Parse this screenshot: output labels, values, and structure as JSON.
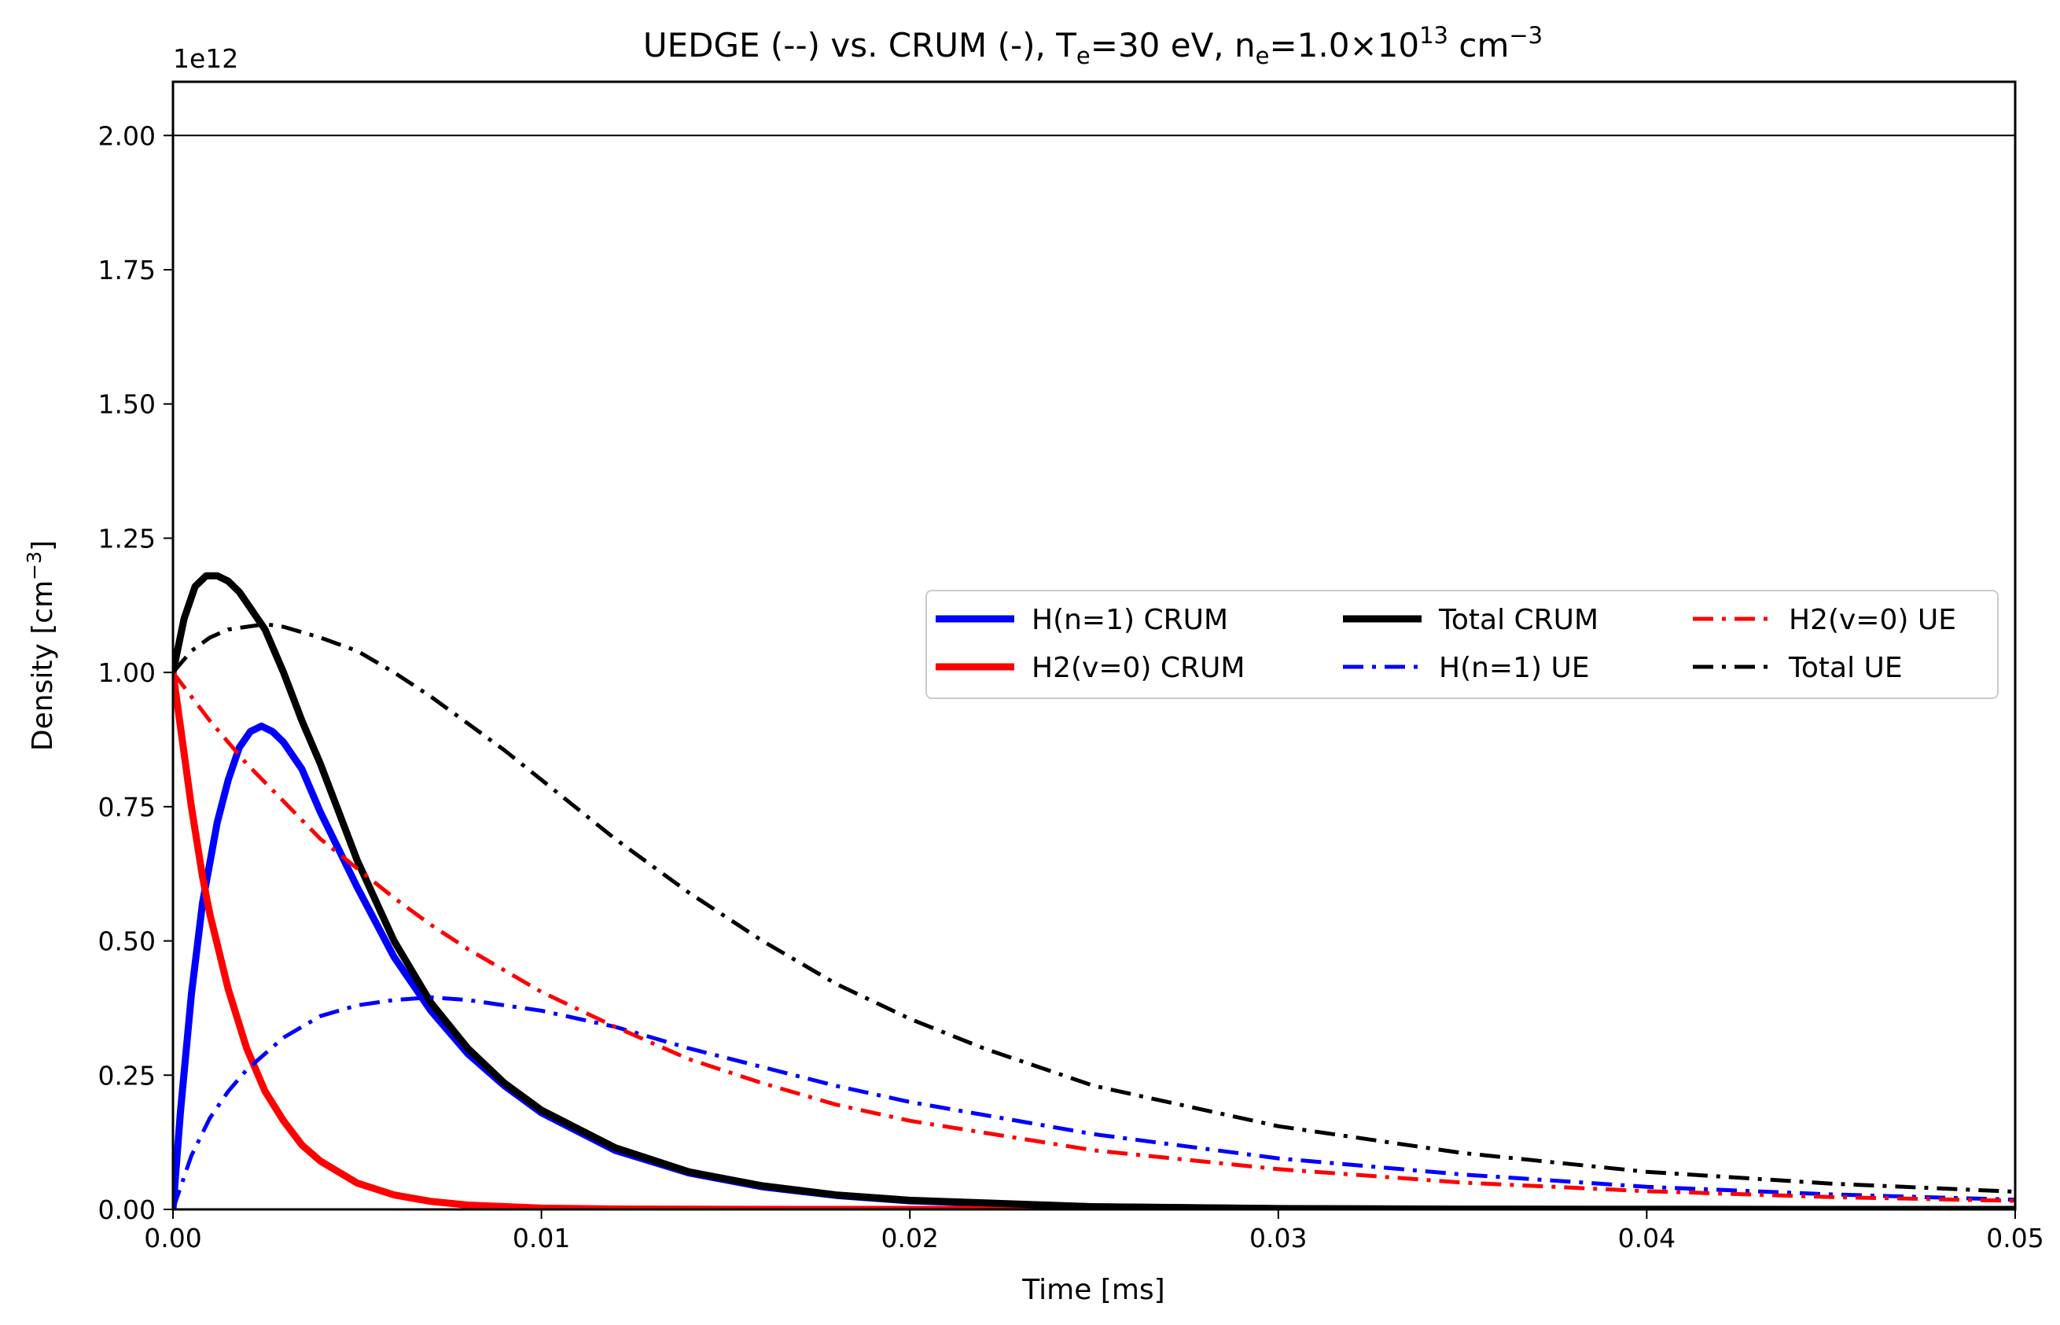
{
  "chart_data": {
    "type": "line",
    "title": {
      "main": "UEDGE (--) vs. CRUM (-),  T",
      "te_sub": "e",
      "mid": "=30 eV, n",
      "ne_sub": "e",
      "mid2": "=1.0×10",
      "exp": "13",
      "unit": " cm",
      "unit_exp": "−3"
    },
    "xlabel": "Time [ms]",
    "ylabel": {
      "main": "Density [cm",
      "exp": "−3",
      "close": "]"
    },
    "y_offset_label": "1e12",
    "y_scale": 1000000000000.0,
    "xlim": [
      0,
      0.05
    ],
    "ylim": [
      0,
      2.1
    ],
    "xticks": [
      0,
      0.01,
      0.02,
      0.03,
      0.04,
      0.05
    ],
    "xtick_labels": [
      "0.00",
      "0.01",
      "0.02",
      "0.03",
      "0.04",
      "0.05"
    ],
    "yticks": [
      0,
      0.25,
      0.5,
      0.75,
      1.0,
      1.25,
      1.5,
      1.75,
      2.0
    ],
    "ytick_labels": [
      "0.00",
      "0.25",
      "0.50",
      "0.75",
      "1.00",
      "1.25",
      "1.50",
      "1.75",
      "2.00"
    ],
    "reference_line_y": 2.0,
    "legend_position": "center-right",
    "series": [
      {
        "name": "H(n=1) CRUM",
        "color": "#0000ff",
        "style": "solid",
        "x": [
          0,
          0.0002,
          0.0005,
          0.0008,
          0.0012,
          0.0015,
          0.0018,
          0.0021,
          0.0024,
          0.0027,
          0.003,
          0.0035,
          0.004,
          0.0045,
          0.005,
          0.006,
          0.007,
          0.008,
          0.009,
          0.01,
          0.012,
          0.014,
          0.016,
          0.018,
          0.02,
          0.025,
          0.03,
          0.035,
          0.04,
          0.045,
          0.05
        ],
        "y": [
          0,
          0.18,
          0.4,
          0.57,
          0.72,
          0.8,
          0.86,
          0.89,
          0.9,
          0.89,
          0.87,
          0.82,
          0.74,
          0.67,
          0.6,
          0.47,
          0.37,
          0.29,
          0.23,
          0.18,
          0.11,
          0.068,
          0.042,
          0.026,
          0.016,
          0.0049,
          0.0015,
          0.0005,
          0.00015,
          4e-05,
          1e-05
        ]
      },
      {
        "name": "H2(v=0) CRUM",
        "color": "#ff0000",
        "style": "solid",
        "x": [
          0,
          0.0002,
          0.0005,
          0.0008,
          0.001,
          0.0015,
          0.002,
          0.0025,
          0.003,
          0.0035,
          0.004,
          0.005,
          0.006,
          0.007,
          0.008,
          0.01,
          0.012,
          0.015,
          0.02,
          0.03,
          0.04,
          0.05
        ],
        "y": [
          1.0,
          0.9,
          0.75,
          0.62,
          0.55,
          0.41,
          0.3,
          0.22,
          0.165,
          0.12,
          0.09,
          0.049,
          0.027,
          0.015,
          0.008,
          0.0024,
          0.0007,
          0.0001,
          1e-05,
          0,
          0,
          0
        ]
      },
      {
        "name": "Total CRUM",
        "color": "#000000",
        "style": "solid",
        "x": [
          0,
          0.0003,
          0.0006,
          0.0009,
          0.0012,
          0.0015,
          0.0018,
          0.0021,
          0.0025,
          0.003,
          0.0035,
          0.004,
          0.0045,
          0.005,
          0.006,
          0.007,
          0.008,
          0.009,
          0.01,
          0.012,
          0.014,
          0.016,
          0.018,
          0.02,
          0.025,
          0.03,
          0.035,
          0.04,
          0.045,
          0.05
        ],
        "y": [
          1.0,
          1.1,
          1.16,
          1.18,
          1.18,
          1.17,
          1.15,
          1.12,
          1.08,
          1.0,
          0.91,
          0.83,
          0.74,
          0.65,
          0.5,
          0.385,
          0.3,
          0.235,
          0.185,
          0.115,
          0.07,
          0.044,
          0.027,
          0.017,
          0.005,
          0.0016,
          0.0005,
          0.00015,
          5e-05,
          1e-05
        ]
      },
      {
        "name": "H(n=1) UE",
        "color": "#0000ff",
        "style": "dashdot",
        "x": [
          0,
          0.0005,
          0.001,
          0.0015,
          0.002,
          0.003,
          0.004,
          0.005,
          0.006,
          0.007,
          0.008,
          0.009,
          0.01,
          0.012,
          0.014,
          0.016,
          0.018,
          0.02,
          0.025,
          0.03,
          0.035,
          0.04,
          0.045,
          0.05
        ],
        "y": [
          0,
          0.1,
          0.17,
          0.22,
          0.26,
          0.32,
          0.36,
          0.38,
          0.39,
          0.395,
          0.39,
          0.38,
          0.37,
          0.34,
          0.3,
          0.265,
          0.23,
          0.2,
          0.14,
          0.095,
          0.065,
          0.042,
          0.028,
          0.018
        ]
      },
      {
        "name": "H2(v=0) UE",
        "color": "#ff0000",
        "style": "dashdot",
        "x": [
          0,
          0.001,
          0.002,
          0.003,
          0.004,
          0.005,
          0.006,
          0.007,
          0.008,
          0.009,
          0.01,
          0.012,
          0.014,
          0.016,
          0.018,
          0.02,
          0.025,
          0.03,
          0.035,
          0.04,
          0.045,
          0.05
        ],
        "y": [
          1.0,
          0.91,
          0.83,
          0.76,
          0.69,
          0.635,
          0.58,
          0.53,
          0.485,
          0.445,
          0.405,
          0.34,
          0.28,
          0.235,
          0.195,
          0.165,
          0.11,
          0.075,
          0.05,
          0.034,
          0.023,
          0.016
        ]
      },
      {
        "name": "Total UE",
        "color": "#000000",
        "style": "dashdot",
        "x": [
          0,
          0.0005,
          0.001,
          0.0015,
          0.002,
          0.0025,
          0.003,
          0.004,
          0.005,
          0.006,
          0.007,
          0.008,
          0.009,
          0.01,
          0.012,
          0.014,
          0.016,
          0.018,
          0.02,
          0.022,
          0.025,
          0.03,
          0.035,
          0.04,
          0.045,
          0.05
        ],
        "y": [
          1.0,
          1.04,
          1.065,
          1.08,
          1.085,
          1.09,
          1.085,
          1.065,
          1.04,
          1.0,
          0.955,
          0.905,
          0.855,
          0.8,
          0.69,
          0.59,
          0.5,
          0.42,
          0.355,
          0.3,
          0.23,
          0.155,
          0.105,
          0.07,
          0.048,
          0.033
        ]
      }
    ]
  }
}
